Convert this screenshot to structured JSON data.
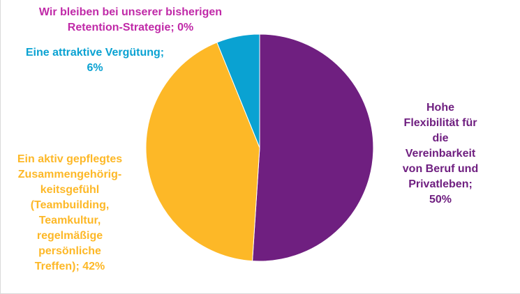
{
  "chart_data": {
    "type": "pie",
    "slices": [
      {
        "name_lines": [
          "Hohe",
          "Flexibilität für",
          "die",
          "Vereinbarkeit",
          "von Beruf und",
          "Privatleben;",
          "50%"
        ],
        "value": 50,
        "color": "#6F1F80"
      },
      {
        "name_lines": [
          "Ein aktiv gepflegtes",
          "Zusammengehörig-",
          "keitsgefühl",
          "(Teambuilding,",
          "Teamkultur,",
          "regelmäßige",
          "persönliche",
          "Treffen); 42%"
        ],
        "value": 42,
        "color": "#FDB827"
      },
      {
        "name_lines": [
          "Eine attraktive Vergütung;",
          "6%"
        ],
        "value": 6,
        "color": "#0AA2D2"
      },
      {
        "name_lines": [
          "Wir bleiben bei unserer bisherigen",
          "Retention-Strategie; 0%"
        ],
        "value": 0,
        "color": "#C02AA8"
      }
    ],
    "start_angle_deg": 0,
    "direction": "clockwise",
    "legend": "none"
  }
}
